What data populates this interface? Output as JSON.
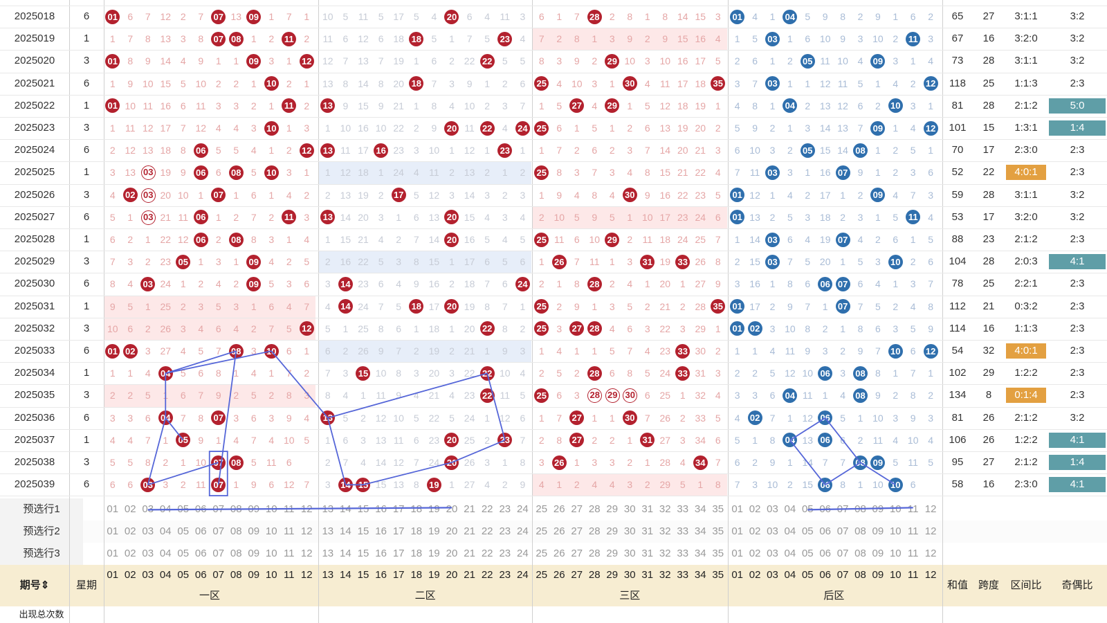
{
  "colors": {
    "red_ball": "#b3212e",
    "blue_ball": "#2f6fad",
    "line": "#5566d8",
    "orange": "#e3a041",
    "teal": "#5f9ea7",
    "header_bg": "#f7edd2",
    "pink_zone": "#fde8e8",
    "blue_zone": "#e7eef9"
  },
  "rows": [
    {
      "period": "2025018",
      "week": "6",
      "z1": "1 6 7 12 2 7 7 13 9 1 7 1",
      "z2": "10 5 11 5 17 5 4 20 6 4 11 3",
      "z3": "6 1 7 28 2 8 1 8 14 15 3",
      "bk": "1 4 1 4 5 9 8 2 9 1 6 2",
      "sum": "65",
      "span": "27",
      "ratio": "3:1:1",
      "odd": "3:2",
      "hits": {
        "z1": [
          "01",
          "07",
          "09"
        ],
        "z2": [
          "20"
        ],
        "z3": [
          "28"
        ],
        "bk": [
          "01",
          "04"
        ]
      }
    },
    {
      "period": "2025019",
      "week": "1",
      "z1": "1 7 8 13 3 8 7 8 1 2 11 2",
      "z2": "11 6 12 6 18 18 5 1 7 5 23 4",
      "z3": "7 2 8 1 3 9 2 9 15 16 4",
      "bk": "1 5 3 1 6 10 9 3 10 2 11 3",
      "sum": "67",
      "span": "16",
      "ratio": "3:2:0",
      "odd": "3:2",
      "hits": {
        "z1": [
          "07",
          "08",
          "11"
        ],
        "z2": [
          "18",
          "23"
        ],
        "z3": [],
        "bk": [
          "03",
          "11"
        ]
      }
    },
    {
      "period": "2025020",
      "week": "3",
      "z1": "1 8 9 14 4 9 1 1 9 3 1 12",
      "z2": "12 7 13 7 19 1 6 2 22 1 5 5",
      "z3": "8 3 9 2 29 10 3 10 16 17 5",
      "bk": "2 6 1 2 5 11 10 4 9 3 1 4",
      "sum": "73",
      "span": "28",
      "ratio": "3:1:1",
      "odd": "3:2",
      "hits": {
        "z1": [
          "01",
          "09",
          "12"
        ],
        "z2": [
          "22"
        ],
        "z3": [
          "29"
        ],
        "bk": [
          "05",
          "09"
        ]
      }
    },
    {
      "period": "2025021",
      "week": "6",
      "z1": "1 9 10 15 5 10 2 2 1 10 2 1",
      "z2": "13 8 14 8 20 18 7 3 9 1 2 6",
      "z3": "25 4 10 3 1 30 4 11 17 18 35",
      "bk": "3 7 3 1 1 12 11 5 1 4 2 12",
      "sum": "118",
      "span": "25",
      "ratio": "1:1:3",
      "odd": "2:3",
      "hits": {
        "z1": [
          "10"
        ],
        "z2": [
          "18"
        ],
        "z3": [
          "25",
          "30",
          "35"
        ],
        "bk": [
          "03",
          "12"
        ]
      }
    },
    {
      "period": "2025022",
      "week": "1",
      "z1": "1 10 11 16 6 11 3 3 2 1 11 2",
      "z2": "13 9 15 9 21 1 8 4 10 2 3 7",
      "z3": "1 5 27 4 29 1 5 12 18 19 1",
      "bk": "4 8 1 4 2 13 12 6 2 10 3 1",
      "sum": "81",
      "span": "28",
      "ratio": "2:1:2",
      "odd": "5:0",
      "hits": {
        "z1": [
          "01",
          "11"
        ],
        "z2": [
          "13"
        ],
        "z3": [
          "27",
          "29"
        ],
        "bk": [
          "04",
          "10"
        ]
      }
    },
    {
      "period": "2025023",
      "week": "3",
      "z1": "1 11 12 17 7 12 4 4 3 10 1 3",
      "z2": "1 10 16 10 22 2 9 20 11 22 4 24",
      "z3": "25 6 1 5 1 2 6 13 19 20 2",
      "bk": "5 9 2 1 3 14 13 7 9 1 4 12",
      "sum": "101",
      "span": "15",
      "ratio": "1:3:1",
      "odd": "1:4",
      "hits": {
        "z1": [
          "10"
        ],
        "z2": [
          "20",
          "22",
          "24"
        ],
        "z3": [
          "25"
        ],
        "bk": [
          "09",
          "12"
        ]
      }
    },
    {
      "period": "2025024",
      "week": "6",
      "z1": "2 12 13 18 8 6 5 5 4 1 2 12",
      "z2": "13 11 17 16 23 3 10 1 12 1 23 1",
      "z3": "1 7 2 6 2 3 7 14 20 21 3",
      "bk": "6 10 3 2 5 15 14 8 1 2 5 1",
      "sum": "70",
      "span": "17",
      "ratio": "2:3:0",
      "odd": "2:3",
      "hits": {
        "z1": [
          "06",
          "12"
        ],
        "z2": [
          "13",
          "16",
          "23"
        ],
        "z3": [],
        "bk": [
          "05",
          "08"
        ]
      }
    },
    {
      "period": "2025025",
      "week": "1",
      "z1": "3 13 3 19 9 6 6 8 5 10 3 1",
      "z2": "1 12 18 1 24 4 11 2 13 2 1 2",
      "z3": "25 8 3 7 3 4 8 15 21 22 4",
      "bk": "7 11 3 3 1 16 7 9 1 2 3 6",
      "sum": "52",
      "span": "22",
      "ratio": "4:0:1",
      "odd": "2:3",
      "hits": {
        "z1": [
          "06",
          "08",
          "10"
        ],
        "z2": [],
        "z3": [
          "25"
        ],
        "bk": [
          "03",
          "07"
        ]
      },
      "ring": {
        "z1": [
          "03"
        ]
      }
    },
    {
      "period": "2025026",
      "week": "3",
      "z1": "4 2 3 20 10 1 7 1 6 1 4 2",
      "z2": "2 13 19 2 17 5 12 3 14 3 2 3",
      "z3": "1 9 4 8 4 30 9 16 22 23 5",
      "bk": "1 12 1 4 2 17 1 2 9 4 7 3",
      "sum": "59",
      "span": "28",
      "ratio": "3:1:1",
      "odd": "3:2",
      "hits": {
        "z1": [
          "02",
          "07"
        ],
        "z2": [
          "17"
        ],
        "z3": [
          "30"
        ],
        "bk": [
          "01",
          "09"
        ]
      },
      "ring": {
        "z1": [
          "03"
        ]
      }
    },
    {
      "period": "2025027",
      "week": "6",
      "z1": "5 1 3 21 11 6 1 2 7 2 11 3",
      "z2": "13 14 20 3 1 6 13 20 15 4 3 4",
      "z3": "2 10 5 9 5 1 10 17 23 24 6",
      "bk": "1 13 2 5 3 18 2 3 1 5 11 4",
      "sum": "53",
      "span": "17",
      "ratio": "3:2:0",
      "odd": "3:2",
      "hits": {
        "z1": [
          "06",
          "11"
        ],
        "z2": [
          "13",
          "20"
        ],
        "z3": [],
        "bk": [
          "01",
          "11"
        ]
      },
      "ring": {
        "z1": [
          "03"
        ]
      }
    },
    {
      "period": "2025028",
      "week": "1",
      "z1": "6 2 1 22 12 6 2 8 8 3 1 4",
      "z2": "1 15 21 4 2 7 14 20 16 5 4 5",
      "z3": "25 11 6 10 29 2 11 18 24 25 7",
      "bk": "1 14 3 6 4 19 7 4 2 6 1 5",
      "sum": "88",
      "span": "23",
      "ratio": "2:1:2",
      "odd": "2:3",
      "hits": {
        "z1": [
          "06",
          "08"
        ],
        "z2": [
          "20"
        ],
        "z3": [
          "25",
          "29"
        ],
        "bk": [
          "03",
          "07"
        ]
      }
    },
    {
      "period": "2025029",
      "week": "3",
      "z1": "7 3 2 23 5 1 3 1 9 4 2 5",
      "z2": "2 16 22 5 3 8 15 1 17 6 5 6",
      "z3": "1 26 7 11 1 3 31 19 33 26 8",
      "bk": "2 15 3 7 5 20 1 5 3 10 2 6",
      "sum": "104",
      "span": "28",
      "ratio": "2:0:3",
      "odd": "4:1",
      "hits": {
        "z1": [
          "05",
          "09"
        ],
        "z2": [],
        "z3": [
          "26",
          "31",
          "33"
        ],
        "bk": [
          "03",
          "10"
        ]
      }
    },
    {
      "period": "2025030",
      "week": "6",
      "z1": "8 4 3 24 1 2 4 2 9 5 3 6",
      "z2": "3 14 23 6 4 9 16 2 18 7 6 24",
      "z3": "2 1 8 28 2 4 1 20 1 27 9",
      "bk": "3 16 1 8 6 6 7 6 4 1 3 7",
      "sum": "78",
      "span": "25",
      "ratio": "2:2:1",
      "odd": "2:3",
      "hits": {
        "z1": [
          "03",
          "09"
        ],
        "z2": [
          "14",
          "24"
        ],
        "z3": [
          "28"
        ],
        "bk": [
          "06",
          "07"
        ]
      }
    },
    {
      "period": "2025031",
      "week": "1",
      "z1": "9 5 1 25 2 3 5 3 1 6 4 7",
      "z2": "4 14 24 7 5 18 17 20 19 8 7 1",
      "z3": "25 2 9 1 3 5 2 21 2 28 35",
      "bk": "1 17 2 9 7 1 7 7 5 2 4 8",
      "sum": "112",
      "span": "21",
      "ratio": "0:3:2",
      "odd": "2:3",
      "hits": {
        "z1": [],
        "z2": [
          "14",
          "18",
          "20"
        ],
        "z3": [
          "25",
          "35"
        ],
        "bk": [
          "01",
          "07"
        ]
      }
    },
    {
      "period": "2025032",
      "week": "3",
      "z1": "10 6 2 26 3 4 6 4 2 7 5 12",
      "z2": "5 1 25 8 6 1 18 1 20 22 8 2",
      "z3": "25 3 27 28 4 6 3 22 3 29 1",
      "bk": "1 2 3 10 8 2 1 8 6 3 5 9",
      "sum": "114",
      "span": "16",
      "ratio": "1:1:3",
      "odd": "2:3",
      "hits": {
        "z1": [
          "12"
        ],
        "z2": [
          "22"
        ],
        "z3": [
          "25",
          "27",
          "28"
        ],
        "bk": [
          "01",
          "02"
        ]
      }
    },
    {
      "period": "2025033",
      "week": "6",
      "z1": "1 2 3 27 4 5 7 8 3 10 6 1",
      "z2": "6 2 26 9 7 2 19 2 21 1 9 3",
      "z3": "1 4 1 1 5 7 4 23 33 30 2",
      "bk": "1 1 4 11 9 3 2 9 7 10 6 12",
      "sum": "54",
      "span": "32",
      "ratio": "4:0:1",
      "odd": "2:3",
      "hits": {
        "z1": [
          "01",
          "02",
          "08",
          "10"
        ],
        "z2": [],
        "z3": [
          "33"
        ],
        "bk": [
          "10",
          "12"
        ]
      }
    },
    {
      "period": "2025034",
      "week": "1",
      "z1": "1 1 4 4 5 6 8 1 4 1 7 2",
      "z2": "7 3 15 10 8 3 20 3 22 22 10 4",
      "z3": "2 5 2 28 6 8 5 24 33 31 3",
      "bk": "2 2 5 12 10 6 3 8 8 1 7 1",
      "sum": "102",
      "span": "29",
      "ratio": "1:2:2",
      "odd": "2:3",
      "hits": {
        "z1": [
          "04"
        ],
        "z2": [
          "15",
          "22"
        ],
        "z3": [
          "28",
          "33"
        ],
        "bk": [
          "06",
          "08"
        ]
      }
    },
    {
      "period": "2025035",
      "week": "3",
      "z1": "2 2 5 1 6 7 9 2 5 2 8 3",
      "z2": "8 4 1 11 9 4 21 4 23 22 11 5",
      "z3": "25 6 3 28 29 30 6 25 1 32 4",
      "bk": "3 3 6 4 11 1 4 8 9 2 8 2",
      "sum": "134",
      "span": "8",
      "ratio": "0:1:4",
      "odd": "2:3",
      "hits": {
        "z1": [],
        "z2": [
          "22"
        ],
        "z3": [
          "25"
        ],
        "bk": [
          "04",
          "08"
        ]
      },
      "ring": {
        "z3": [
          "28",
          "29",
          "30"
        ]
      }
    },
    {
      "period": "2025036",
      "week": "6",
      "z1": "3 3 6 4 7 8 7 3 6 3 9 4",
      "z2": "13 5 2 12 10 5 22 5 24 1 12 6",
      "z3": "1 7 27 1 1 30 7 26 2 33 5",
      "bk": "4 2 7 1 12 6 5 1 10 3 9 3",
      "sum": "81",
      "span": "26",
      "ratio": "2:1:2",
      "odd": "3:2",
      "hits": {
        "z1": [
          "04",
          "07"
        ],
        "z2": [
          "13"
        ],
        "z3": [
          "27",
          "30"
        ],
        "bk": [
          "02",
          "06"
        ]
      }
    },
    {
      "period": "2025037",
      "week": "1",
      "z1": "4 4 7 1 5 9 1 4 7 4 10 5",
      "z2": "1 6 3 13 11 6 23 20 25 2 23 7",
      "z3": "2 8 27 2 2 1 31 27 3 34 6",
      "bk": "5 1 8 4 13 6 6 2 11 4 10 4",
      "sum": "106",
      "span": "26",
      "ratio": "1:2:2",
      "odd": "4:1",
      "hits": {
        "z1": [
          "05"
        ],
        "z2": [
          "20",
          "23"
        ],
        "z3": [
          "27",
          "31"
        ],
        "bk": [
          "04",
          "06"
        ]
      }
    },
    {
      "period": "2025038",
      "week": "3",
      "z1": "5 5 8 2 1 10 7 8 5 11 6",
      "z2": "2 7 4 14 12 7 24 20 26 3 1 8",
      "z3": "3 26 1 3 3 2 1 28 4 34 7",
      "bk": "6 2 9 1 14 7 7 8 9 5 11 5",
      "sum": "95",
      "span": "27",
      "ratio": "2:1:2",
      "odd": "1:4",
      "hits": {
        "z1": [
          "07",
          "08"
        ],
        "z2": [
          "20"
        ],
        "z3": [
          "26",
          "34"
        ],
        "bk": [
          "08",
          "09"
        ]
      }
    },
    {
      "period": "2025039",
      "week": "6",
      "z1": "6 6 3 3 2 11 7 1 9 6 12 7",
      "z2": "3 14 15 15 13 8 19 1 27 4 2 9",
      "z3": "4 1 2 4 4 3 2 29 5 1 8",
      "bk": "7 3 10 2 15 6 8 1 10 12 6",
      "sum": "58",
      "span": "16",
      "ratio": "2:3:0",
      "odd": "4:1",
      "hits": {
        "z1": [
          "03",
          "07"
        ],
        "z2": [
          "14",
          "15",
          "19"
        ],
        "z3": [],
        "bk": [
          "06",
          "10"
        ]
      }
    }
  ],
  "picks": [
    "预选行1",
    "预选行2",
    "预选行3"
  ],
  "header": {
    "period": "期号⇕",
    "week": "星期",
    "zone1": "一区",
    "zone2": "二区",
    "zone3": "三区",
    "back": "后区",
    "sum": "和值",
    "span": "跨度",
    "ratio": "区间比",
    "odd": "奇偶比"
  },
  "footer_label": "出现总次数"
}
